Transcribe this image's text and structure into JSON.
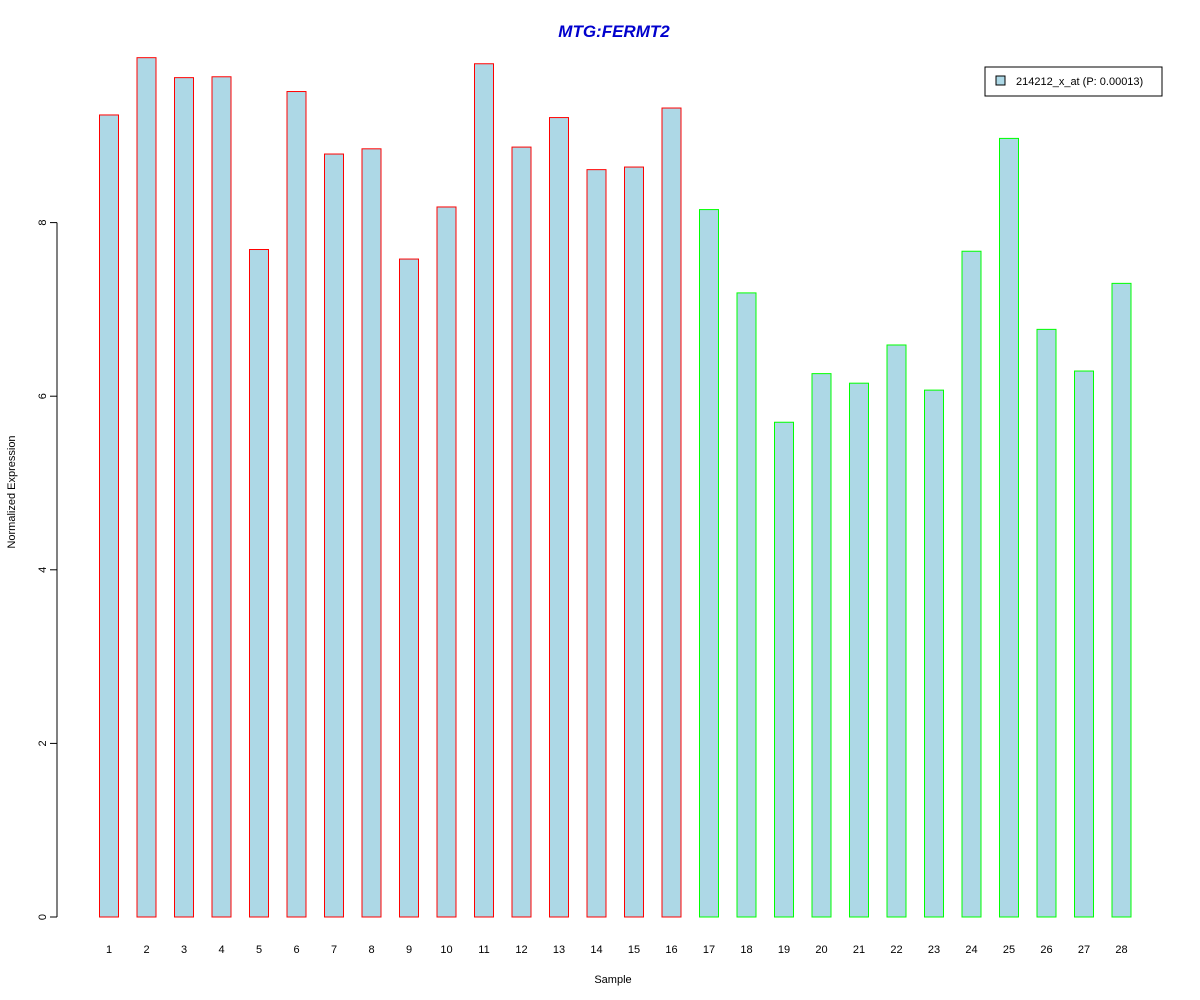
{
  "chart_data": {
    "type": "bar",
    "title": "MTG:FERMT2",
    "xlabel": "Sample",
    "ylabel": "Normalized Expression",
    "categories": [
      "1",
      "2",
      "3",
      "4",
      "5",
      "6",
      "7",
      "8",
      "9",
      "10",
      "11",
      "12",
      "13",
      "14",
      "15",
      "16",
      "17",
      "18",
      "19",
      "20",
      "21",
      "22",
      "23",
      "24",
      "25",
      "26",
      "27",
      "28"
    ],
    "series": [
      {
        "name": "214212_x_at (P: 0.00013)",
        "values": [
          9.24,
          9.9,
          9.67,
          9.68,
          7.69,
          9.51,
          8.79,
          8.85,
          7.58,
          8.18,
          9.83,
          8.87,
          9.21,
          8.61,
          8.64,
          9.32,
          8.15,
          7.19,
          5.7,
          6.26,
          6.15,
          6.59,
          6.07,
          7.67,
          8.97,
          6.77,
          6.29,
          7.3
        ]
      }
    ],
    "ylim": [
      0,
      10
    ],
    "yticks": [
      "0",
      "2",
      "4",
      "6",
      "8"
    ],
    "grid": false,
    "legend_position": "top-right",
    "colors": {
      "bar_fill": "#add8e6",
      "group_1_border": "#ff0000",
      "group_2_border": "#00ff00",
      "title": "#0000cd",
      "axis": "#000000"
    },
    "groups": [
      {
        "samples": [
          1,
          16
        ],
        "border_color": "#ff0000"
      },
      {
        "samples": [
          17,
          28
        ],
        "border_color": "#00ff00"
      }
    ]
  }
}
